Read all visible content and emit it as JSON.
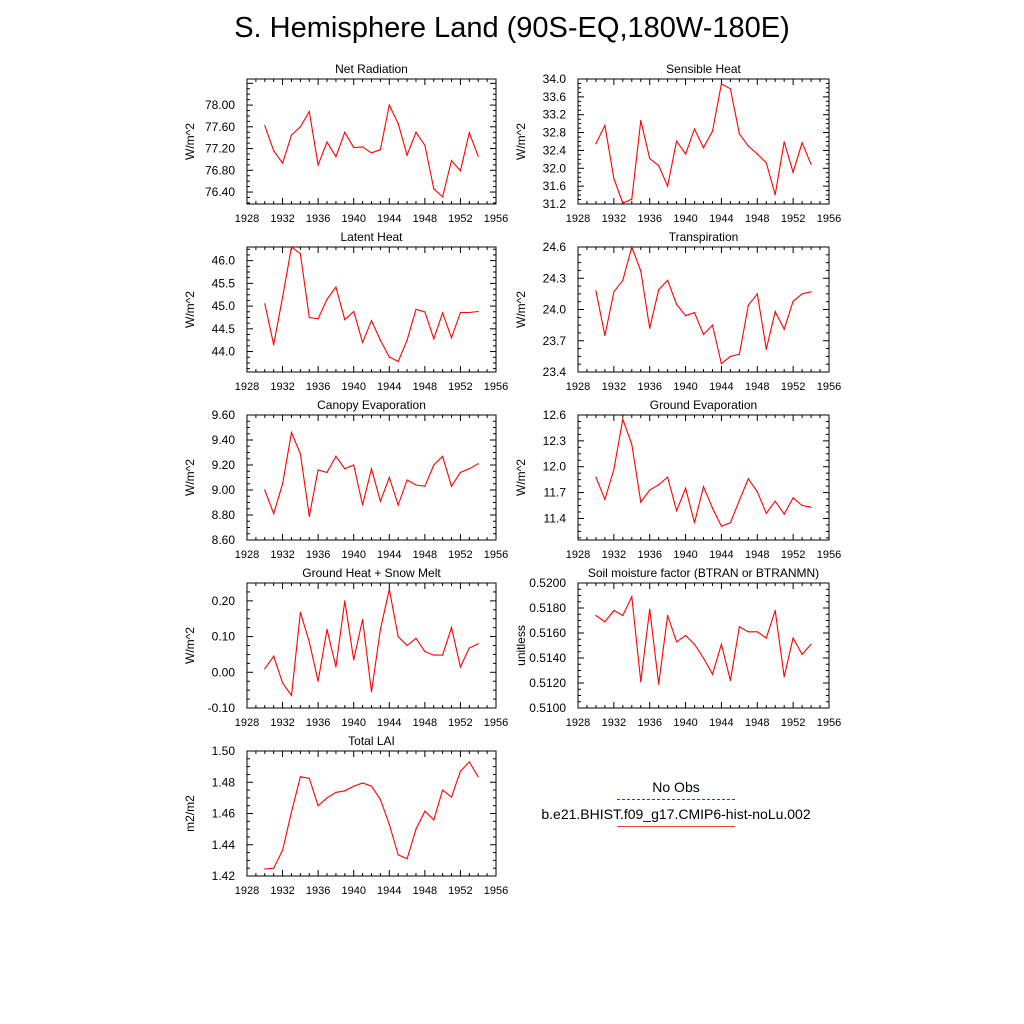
{
  "title": "S. Hemisphere Land (90S-EQ,180W-180E)",
  "legend": {
    "obs_label": "No Obs",
    "model_label": "b.e21.BHIST.f09_g17.CMIP6-hist-noLu.002",
    "obs_color": "#3a3aa8",
    "model_color": "#ff0000"
  },
  "chart_data": [
    {
      "type": "line",
      "title": "Net Radiation",
      "ylabel": "W/m^2",
      "xlim": [
        1928,
        1956
      ],
      "xticks": [
        "1928",
        "1932",
        "1936",
        "1940",
        "1944",
        "1948",
        "1952",
        "1956"
      ],
      "ylim": [
        76.18,
        78.48
      ],
      "yticks": [
        "76.40",
        "76.80",
        "77.20",
        "77.60",
        "78.00"
      ],
      "x": [
        1930,
        1931,
        1932,
        1933,
        1934,
        1935,
        1936,
        1937,
        1938,
        1939,
        1940,
        1941,
        1942,
        1943,
        1944,
        1945,
        1946,
        1947,
        1948,
        1949,
        1950,
        1951,
        1952,
        1953,
        1954
      ],
      "series": [
        {
          "values": [
            77.62,
            77.16,
            76.93,
            77.45,
            77.6,
            77.88,
            76.9,
            77.32,
            77.05,
            77.5,
            77.22,
            77.23,
            77.12,
            77.18,
            78.0,
            77.66,
            77.08,
            77.5,
            77.26,
            76.46,
            76.31,
            76.98,
            76.79,
            77.49,
            77.06
          ]
        }
      ]
    },
    {
      "type": "line",
      "title": "Sensible Heat",
      "ylabel": "W/m^2",
      "xlim": [
        1928,
        1956
      ],
      "xticks": [
        "1928",
        "1932",
        "1936",
        "1940",
        "1944",
        "1948",
        "1952",
        "1956"
      ],
      "ylim": [
        31.2,
        34.0
      ],
      "yticks": [
        "31.2",
        "31.6",
        "32.0",
        "32.4",
        "32.8",
        "33.2",
        "33.6",
        "34.0"
      ],
      "x": [
        1930,
        1931,
        1932,
        1933,
        1934,
        1935,
        1936,
        1937,
        1938,
        1939,
        1940,
        1941,
        1942,
        1943,
        1944,
        1945,
        1946,
        1947,
        1948,
        1949,
        1950,
        1951,
        1952,
        1953,
        1954
      ],
      "series": [
        {
          "values": [
            32.55,
            32.96,
            31.77,
            31.22,
            31.31,
            33.07,
            32.22,
            32.06,
            31.6,
            32.61,
            32.32,
            32.88,
            32.46,
            32.83,
            33.89,
            33.78,
            32.77,
            32.5,
            32.32,
            32.12,
            31.41,
            32.59,
            31.91,
            32.57,
            32.09
          ]
        }
      ]
    },
    {
      "type": "line",
      "title": "Latent Heat",
      "ylabel": "W/m^2",
      "xlim": [
        1928,
        1956
      ],
      "xticks": [
        "1928",
        "1932",
        "1936",
        "1940",
        "1944",
        "1948",
        "1952",
        "1956"
      ],
      "ylim": [
        43.55,
        46.3
      ],
      "yticks": [
        "44.0",
        "44.5",
        "45.0",
        "45.5",
        "46.0"
      ],
      "x": [
        1930,
        1931,
        1932,
        1933,
        1934,
        1935,
        1936,
        1937,
        1938,
        1939,
        1940,
        1941,
        1942,
        1943,
        1944,
        1945,
        1946,
        1947,
        1948,
        1949,
        1950,
        1951,
        1952,
        1953,
        1954
      ],
      "series": [
        {
          "values": [
            45.05,
            44.15,
            45.2,
            46.3,
            46.15,
            44.75,
            44.72,
            45.15,
            45.42,
            44.7,
            44.88,
            44.2,
            44.68,
            44.25,
            43.88,
            43.78,
            44.25,
            44.93,
            44.87,
            44.28,
            44.85,
            44.3,
            44.86,
            44.86,
            44.88
          ]
        }
      ]
    },
    {
      "type": "line",
      "title": "Transpiration",
      "ylabel": "W/m^2",
      "xlim": [
        1928,
        1956
      ],
      "xticks": [
        "1928",
        "1932",
        "1936",
        "1940",
        "1944",
        "1948",
        "1952",
        "1956"
      ],
      "ylim": [
        23.4,
        24.6
      ],
      "yticks": [
        "23.4",
        "23.7",
        "24.0",
        "24.3",
        "24.6"
      ],
      "x": [
        1930,
        1931,
        1932,
        1933,
        1934,
        1935,
        1936,
        1937,
        1938,
        1939,
        1940,
        1941,
        1942,
        1943,
        1944,
        1945,
        1946,
        1947,
        1948,
        1949,
        1950,
        1951,
        1952,
        1953,
        1954
      ],
      "series": [
        {
          "values": [
            24.18,
            23.75,
            24.17,
            24.28,
            24.6,
            24.37,
            23.82,
            24.19,
            24.28,
            24.05,
            23.94,
            23.97,
            23.76,
            23.85,
            23.48,
            23.55,
            23.57,
            24.04,
            24.15,
            23.62,
            23.98,
            23.81,
            24.08,
            24.15,
            24.17
          ]
        }
      ]
    },
    {
      "type": "line",
      "title": "Canopy Evaporation",
      "ylabel": "W/m^2",
      "xlim": [
        1928,
        1956
      ],
      "xticks": [
        "1928",
        "1932",
        "1936",
        "1940",
        "1944",
        "1948",
        "1952",
        "1956"
      ],
      "ylim": [
        8.6,
        9.6
      ],
      "yticks": [
        "8.60",
        "8.80",
        "9.00",
        "9.20",
        "9.40",
        "9.60"
      ],
      "x": [
        1930,
        1931,
        1932,
        1933,
        1934,
        1935,
        1936,
        1937,
        1938,
        1939,
        1940,
        1941,
        1942,
        1943,
        1944,
        1945,
        1946,
        1947,
        1948,
        1949,
        1950,
        1951,
        1952,
        1953,
        1954
      ],
      "series": [
        {
          "values": [
            9.0,
            8.81,
            9.05,
            9.46,
            9.29,
            8.79,
            9.16,
            9.14,
            9.27,
            9.17,
            9.2,
            8.88,
            9.17,
            8.91,
            9.1,
            8.88,
            9.08,
            9.04,
            9.03,
            9.2,
            9.27,
            9.03,
            9.14,
            9.17,
            9.21
          ]
        }
      ]
    },
    {
      "type": "line",
      "title": "Ground Evaporation",
      "ylabel": "W/m^2",
      "xlim": [
        1928,
        1956
      ],
      "xticks": [
        "1928",
        "1932",
        "1936",
        "1940",
        "1944",
        "1948",
        "1952",
        "1956"
      ],
      "ylim": [
        11.15,
        12.6
      ],
      "yticks": [
        "11.4",
        "11.7",
        "12.0",
        "12.3",
        "12.6"
      ],
      "x": [
        1930,
        1931,
        1932,
        1933,
        1934,
        1935,
        1936,
        1937,
        1938,
        1939,
        1940,
        1941,
        1942,
        1943,
        1944,
        1945,
        1946,
        1947,
        1948,
        1949,
        1950,
        1951,
        1952,
        1953,
        1954
      ],
      "series": [
        {
          "values": [
            11.88,
            11.62,
            11.97,
            12.55,
            12.26,
            11.59,
            11.73,
            11.79,
            11.88,
            11.49,
            11.75,
            11.35,
            11.77,
            11.52,
            11.31,
            11.35,
            11.61,
            11.86,
            11.71,
            11.46,
            11.6,
            11.45,
            11.64,
            11.55,
            11.53
          ]
        }
      ]
    },
    {
      "type": "line",
      "title": "Ground Heat + Snow Melt",
      "ylabel": "W/m^2",
      "xlim": [
        1928,
        1956
      ],
      "xticks": [
        "1928",
        "1932",
        "1936",
        "1940",
        "1944",
        "1948",
        "1952",
        "1956"
      ],
      "ylim": [
        -0.1,
        0.25
      ],
      "yticks": [
        "-0.10",
        "0.00",
        "0.10",
        "0.20"
      ],
      "x": [
        1930,
        1931,
        1932,
        1933,
        1934,
        1935,
        1936,
        1937,
        1938,
        1939,
        1940,
        1941,
        1942,
        1943,
        1944,
        1945,
        1946,
        1947,
        1948,
        1949,
        1950,
        1951,
        1952,
        1953,
        1954
      ],
      "series": [
        {
          "values": [
            0.01,
            0.045,
            -0.03,
            -0.065,
            0.168,
            0.085,
            -0.025,
            0.12,
            0.015,
            0.2,
            0.035,
            0.148,
            -0.055,
            0.12,
            0.232,
            0.1,
            0.075,
            0.095,
            0.058,
            0.048,
            0.048,
            0.125,
            0.015,
            0.068,
            0.08
          ]
        }
      ]
    },
    {
      "type": "line",
      "title": "Soil moisture factor (BTRAN or BTRANMN)",
      "ylabel": "unitless",
      "xlim": [
        1928,
        1956
      ],
      "xticks": [
        "1928",
        "1932",
        "1936",
        "1940",
        "1944",
        "1948",
        "1952",
        "1956"
      ],
      "ylim": [
        0.51,
        0.52
      ],
      "yticks": [
        "0.5100",
        "0.5120",
        "0.5140",
        "0.5160",
        "0.5180",
        "0.5200"
      ],
      "x": [
        1930,
        1931,
        1932,
        1933,
        1934,
        1935,
        1936,
        1937,
        1938,
        1939,
        1940,
        1941,
        1942,
        1943,
        1944,
        1945,
        1946,
        1947,
        1948,
        1949,
        1950,
        1951,
        1952,
        1953,
        1954
      ],
      "series": [
        {
          "values": [
            0.5174,
            0.5169,
            0.5178,
            0.5174,
            0.5189,
            0.5121,
            0.5179,
            0.5119,
            0.5174,
            0.5153,
            0.5158,
            0.5151,
            0.514,
            0.5127,
            0.5151,
            0.5122,
            0.5165,
            0.5161,
            0.5161,
            0.5156,
            0.5178,
            0.5125,
            0.5156,
            0.5143,
            0.5151
          ]
        }
      ]
    },
    {
      "type": "line",
      "title": "Total LAI",
      "ylabel": "m2/m2",
      "xlim": [
        1928,
        1956
      ],
      "xticks": [
        "1928",
        "1932",
        "1936",
        "1940",
        "1944",
        "1948",
        "1952",
        "1956"
      ],
      "ylim": [
        1.42,
        1.5
      ],
      "yticks": [
        "1.42",
        "1.44",
        "1.46",
        "1.48",
        "1.50"
      ],
      "x": [
        1930,
        1931,
        1932,
        1933,
        1934,
        1935,
        1936,
        1937,
        1938,
        1939,
        1940,
        1941,
        1942,
        1943,
        1944,
        1945,
        1946,
        1947,
        1948,
        1949,
        1950,
        1951,
        1952,
        1953,
        1954
      ],
      "series": [
        {
          "values": [
            1.4245,
            1.425,
            1.4365,
            1.461,
            1.4835,
            1.4825,
            1.465,
            1.47,
            1.4735,
            1.4745,
            1.4775,
            1.4795,
            1.4775,
            1.469,
            1.453,
            1.4335,
            1.431,
            1.45,
            1.4615,
            1.456,
            1.475,
            1.4705,
            1.487,
            1.493,
            1.4835
          ]
        }
      ]
    }
  ]
}
